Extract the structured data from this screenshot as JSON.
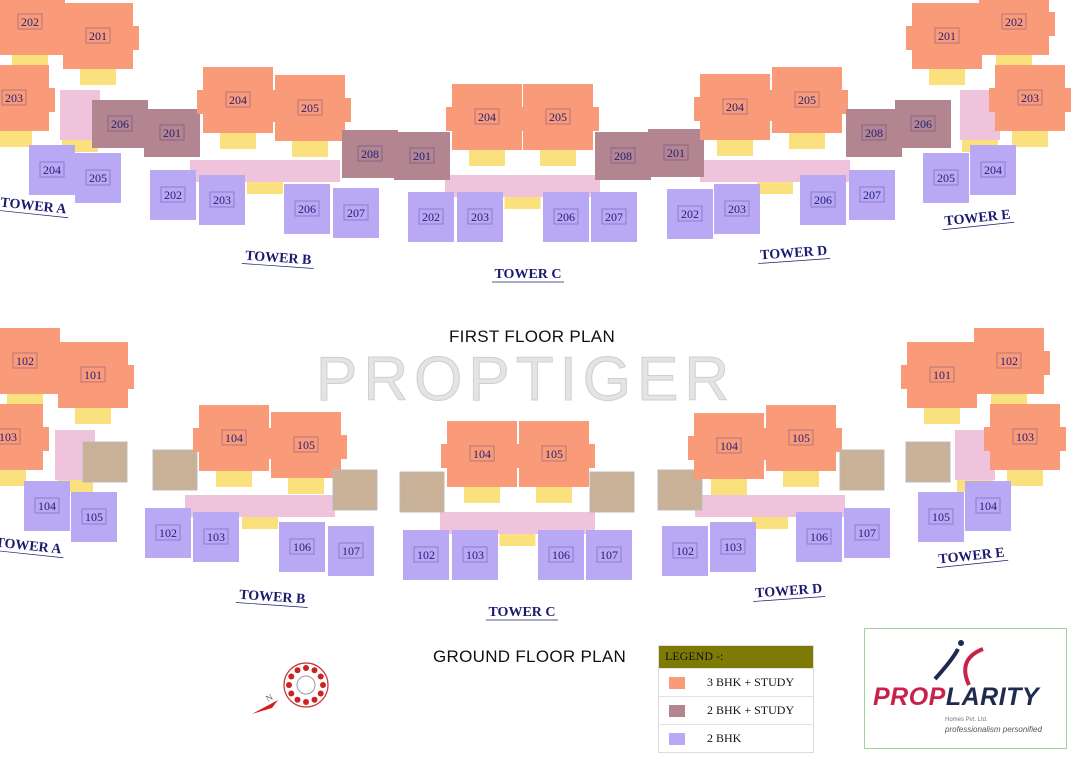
{
  "watermark": "PROPTIGER",
  "colors": {
    "3bhk_study": "#f99b78",
    "2bhk_study": "#b38590",
    "2bhk": "#b9a8f4",
    "unlabeled_unit": "#c9b197",
    "corridor": "#f0c3dc",
    "lobby": "#fbe07e",
    "label_text": "#23207a"
  },
  "first_floor": {
    "title": "FIRST FLOOR PLAN",
    "towers": [
      {
        "name": "TOWER A",
        "units": [
          {
            "label": "202",
            "type": "3bhk_study"
          },
          {
            "label": "201",
            "type": "3bhk_study"
          },
          {
            "label": "203",
            "type": "3bhk_study"
          },
          {
            "label": "206",
            "type": "2bhk_study"
          },
          {
            "label": "204",
            "type": "2bhk"
          },
          {
            "label": "205",
            "type": "2bhk"
          }
        ]
      },
      {
        "name": "TOWER B",
        "units": [
          {
            "label": "201",
            "type": "2bhk_study"
          },
          {
            "label": "204",
            "type": "3bhk_study"
          },
          {
            "label": "205",
            "type": "3bhk_study"
          },
          {
            "label": "208",
            "type": "2bhk_study"
          },
          {
            "label": "202",
            "type": "2bhk"
          },
          {
            "label": "203",
            "type": "2bhk"
          },
          {
            "label": "206",
            "type": "2bhk"
          },
          {
            "label": "207",
            "type": "2bhk"
          }
        ]
      },
      {
        "name": "TOWER C",
        "units": [
          {
            "label": "201",
            "type": "2bhk_study"
          },
          {
            "label": "204",
            "type": "3bhk_study"
          },
          {
            "label": "205",
            "type": "3bhk_study"
          },
          {
            "label": "208",
            "type": "2bhk_study"
          },
          {
            "label": "202",
            "type": "2bhk"
          },
          {
            "label": "203",
            "type": "2bhk"
          },
          {
            "label": "206",
            "type": "2bhk"
          },
          {
            "label": "207",
            "type": "2bhk"
          }
        ]
      },
      {
        "name": "TOWER D",
        "units": [
          {
            "label": "201",
            "type": "2bhk_study"
          },
          {
            "label": "204",
            "type": "3bhk_study"
          },
          {
            "label": "205",
            "type": "3bhk_study"
          },
          {
            "label": "208",
            "type": "2bhk_study"
          },
          {
            "label": "202",
            "type": "2bhk"
          },
          {
            "label": "203",
            "type": "2bhk"
          },
          {
            "label": "206",
            "type": "2bhk"
          },
          {
            "label": "207",
            "type": "2bhk"
          }
        ]
      },
      {
        "name": "TOWER E",
        "units": [
          {
            "label": "206",
            "type": "2bhk_study"
          },
          {
            "label": "201",
            "type": "3bhk_study"
          },
          {
            "label": "202",
            "type": "3bhk_study"
          },
          {
            "label": "203",
            "type": "3bhk_study"
          },
          {
            "label": "205",
            "type": "2bhk"
          },
          {
            "label": "204",
            "type": "2bhk"
          }
        ]
      }
    ]
  },
  "ground_floor": {
    "title": "GROUND FLOOR PLAN",
    "towers": [
      {
        "name": "TOWER A",
        "units": [
          {
            "label": "102",
            "type": "3bhk_study"
          },
          {
            "label": "101",
            "type": "3bhk_study"
          },
          {
            "label": "103",
            "type": "3bhk_study"
          },
          {
            "label": "",
            "type": "unlabeled_unit"
          },
          {
            "label": "104",
            "type": "2bhk"
          },
          {
            "label": "105",
            "type": "2bhk"
          }
        ]
      },
      {
        "name": "TOWER B",
        "units": [
          {
            "label": "",
            "type": "unlabeled_unit"
          },
          {
            "label": "104",
            "type": "3bhk_study"
          },
          {
            "label": "105",
            "type": "3bhk_study"
          },
          {
            "label": "",
            "type": "unlabeled_unit"
          },
          {
            "label": "102",
            "type": "2bhk"
          },
          {
            "label": "103",
            "type": "2bhk"
          },
          {
            "label": "106",
            "type": "2bhk"
          },
          {
            "label": "107",
            "type": "2bhk"
          }
        ]
      },
      {
        "name": "TOWER C",
        "units": [
          {
            "label": "",
            "type": "unlabeled_unit"
          },
          {
            "label": "104",
            "type": "3bhk_study"
          },
          {
            "label": "105",
            "type": "3bhk_study"
          },
          {
            "label": "",
            "type": "unlabeled_unit"
          },
          {
            "label": "102",
            "type": "2bhk"
          },
          {
            "label": "103",
            "type": "2bhk"
          },
          {
            "label": "106",
            "type": "2bhk"
          },
          {
            "label": "107",
            "type": "2bhk"
          }
        ]
      },
      {
        "name": "TOWER D",
        "units": [
          {
            "label": "",
            "type": "unlabeled_unit"
          },
          {
            "label": "104",
            "type": "3bhk_study"
          },
          {
            "label": "105",
            "type": "3bhk_study"
          },
          {
            "label": "",
            "type": "unlabeled_unit"
          },
          {
            "label": "102",
            "type": "2bhk"
          },
          {
            "label": "103",
            "type": "2bhk"
          },
          {
            "label": "106",
            "type": "2bhk"
          },
          {
            "label": "107",
            "type": "2bhk"
          }
        ]
      },
      {
        "name": "TOWER E",
        "units": [
          {
            "label": "",
            "type": "unlabeled_unit"
          },
          {
            "label": "101",
            "type": "3bhk_study"
          },
          {
            "label": "102",
            "type": "3bhk_study"
          },
          {
            "label": "103",
            "type": "3bhk_study"
          },
          {
            "label": "105",
            "type": "2bhk"
          },
          {
            "label": "104",
            "type": "2bhk"
          }
        ]
      }
    ]
  },
  "legend": {
    "title": "LEGEND -:",
    "items": [
      {
        "label": "3 BHK + STUDY",
        "type": "3bhk_study"
      },
      {
        "label": "2 BHK + STUDY",
        "type": "2bhk_study"
      },
      {
        "label": "2 BHK",
        "type": "2bhk"
      }
    ]
  },
  "logo": {
    "name_part1": "PROP",
    "name_part2": "LARITY",
    "company": "Homes Pvt. Ltd.",
    "tagline": "professionalism personified",
    "color1": "#c8224a",
    "color2": "#1f2a4f"
  },
  "compass": {
    "icon": "compass-rose-icon",
    "north_marker": "N"
  }
}
